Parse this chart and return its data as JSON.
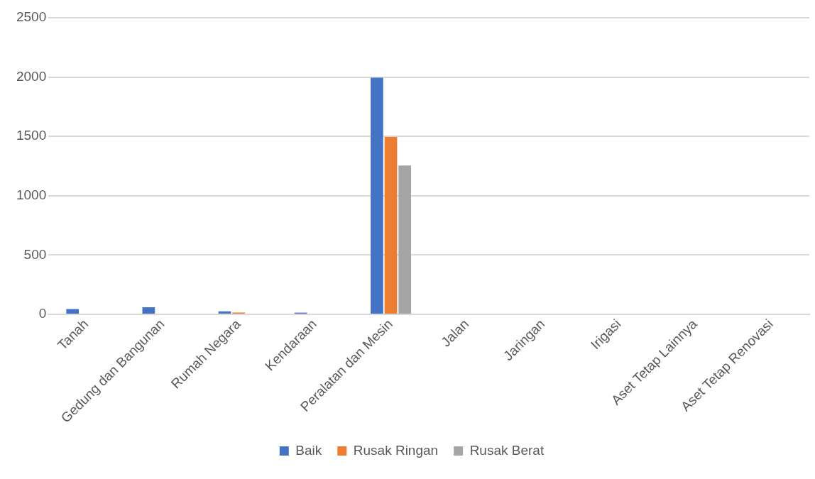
{
  "chart_data": {
    "type": "bar",
    "categories": [
      "Tanah",
      "Gedung dan Bangunan",
      "Rumah Negara",
      "Kendaraan",
      "Peralatan dan Mesin",
      "Jalan",
      "Jaringan",
      "Irigasi",
      "Aset Tetap Lainnya",
      "Aset Tetap Renovasi"
    ],
    "series": [
      {
        "name": "Baik",
        "color": "#4472c4",
        "values": [
          45,
          60,
          25,
          14,
          1995,
          0,
          0,
          0,
          0,
          0
        ]
      },
      {
        "name": "Rusak Ringan",
        "color": "#ed7d31",
        "values": [
          0,
          0,
          15,
          0,
          1495,
          0,
          0,
          0,
          0,
          0
        ]
      },
      {
        "name": "Rusak Berat",
        "color": "#a5a5a5",
        "values": [
          0,
          0,
          0,
          0,
          1255,
          0,
          0,
          0,
          0,
          0
        ]
      }
    ],
    "ylim": [
      0,
      2500
    ],
    "yticks": [
      0,
      500,
      1000,
      1500,
      2000,
      2500
    ],
    "grid": "y",
    "legend": "bottom"
  }
}
